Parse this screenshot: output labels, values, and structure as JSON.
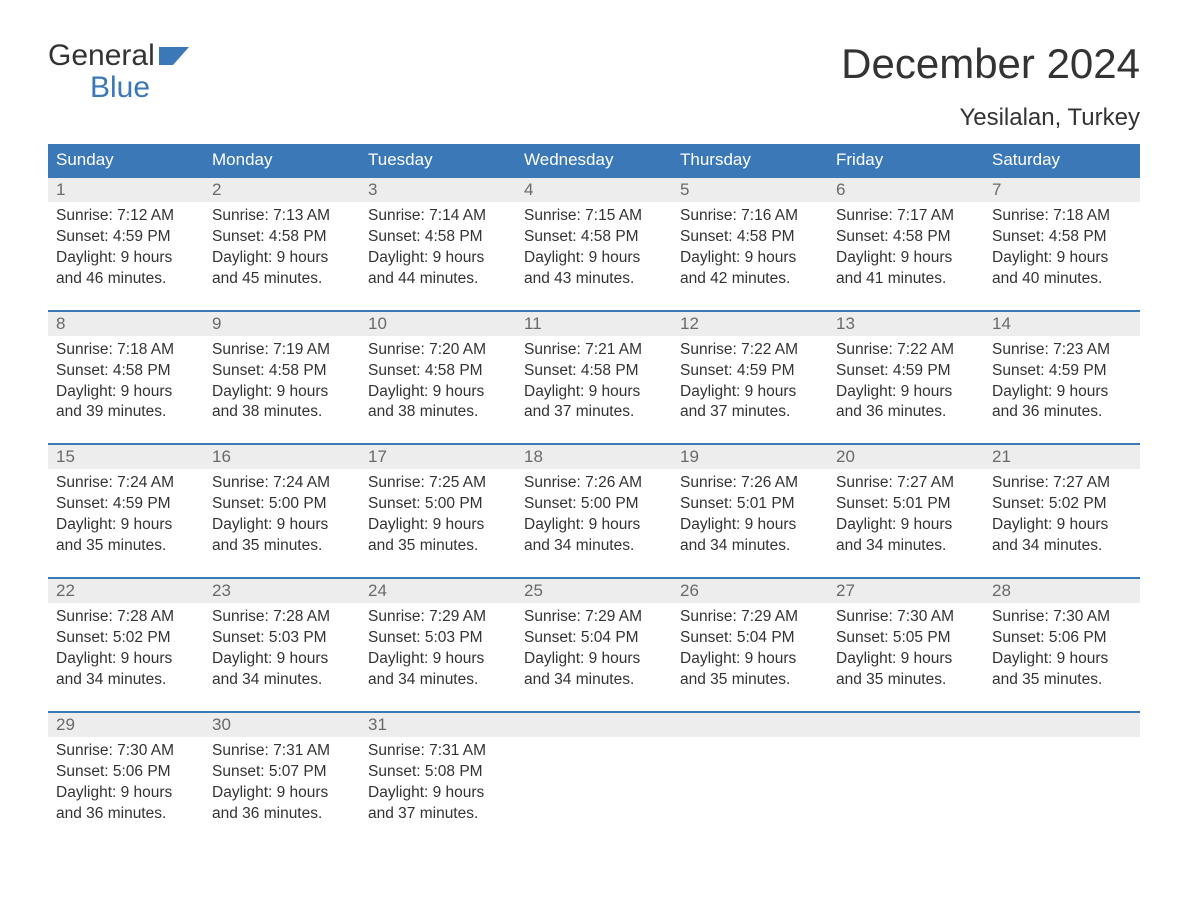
{
  "logo": {
    "word1": "General",
    "word2": "Blue"
  },
  "title": "December 2024",
  "subtitle": "Yesilalan, Turkey",
  "colors": {
    "header_bg": "#3b78b8",
    "header_text": "#ffffff",
    "daynum_bg": "#ededed",
    "daynum_text": "#6a6a6a",
    "body_text": "#333333",
    "week_border": "#3b78b8",
    "logo_blue": "#3b78b8"
  },
  "layout": {
    "columns": 7,
    "rows": 5,
    "cell_font_size": 15.5,
    "title_font_size": 42,
    "subtitle_font_size": 24,
    "weekday_font_size": 17
  },
  "weekdays": [
    "Sunday",
    "Monday",
    "Tuesday",
    "Wednesday",
    "Thursday",
    "Friday",
    "Saturday"
  ],
  "labels": {
    "sunrise": "Sunrise:",
    "sunset": "Sunset:",
    "daylight": "Daylight:"
  },
  "weeks": [
    [
      {
        "n": "1",
        "sunrise": "7:12 AM",
        "sunset": "4:59 PM",
        "dl1": "9 hours",
        "dl2": "and 46 minutes."
      },
      {
        "n": "2",
        "sunrise": "7:13 AM",
        "sunset": "4:58 PM",
        "dl1": "9 hours",
        "dl2": "and 45 minutes."
      },
      {
        "n": "3",
        "sunrise": "7:14 AM",
        "sunset": "4:58 PM",
        "dl1": "9 hours",
        "dl2": "and 44 minutes."
      },
      {
        "n": "4",
        "sunrise": "7:15 AM",
        "sunset": "4:58 PM",
        "dl1": "9 hours",
        "dl2": "and 43 minutes."
      },
      {
        "n": "5",
        "sunrise": "7:16 AM",
        "sunset": "4:58 PM",
        "dl1": "9 hours",
        "dl2": "and 42 minutes."
      },
      {
        "n": "6",
        "sunrise": "7:17 AM",
        "sunset": "4:58 PM",
        "dl1": "9 hours",
        "dl2": "and 41 minutes."
      },
      {
        "n": "7",
        "sunrise": "7:18 AM",
        "sunset": "4:58 PM",
        "dl1": "9 hours",
        "dl2": "and 40 minutes."
      }
    ],
    [
      {
        "n": "8",
        "sunrise": "7:18 AM",
        "sunset": "4:58 PM",
        "dl1": "9 hours",
        "dl2": "and 39 minutes."
      },
      {
        "n": "9",
        "sunrise": "7:19 AM",
        "sunset": "4:58 PM",
        "dl1": "9 hours",
        "dl2": "and 38 minutes."
      },
      {
        "n": "10",
        "sunrise": "7:20 AM",
        "sunset": "4:58 PM",
        "dl1": "9 hours",
        "dl2": "and 38 minutes."
      },
      {
        "n": "11",
        "sunrise": "7:21 AM",
        "sunset": "4:58 PM",
        "dl1": "9 hours",
        "dl2": "and 37 minutes."
      },
      {
        "n": "12",
        "sunrise": "7:22 AM",
        "sunset": "4:59 PM",
        "dl1": "9 hours",
        "dl2": "and 37 minutes."
      },
      {
        "n": "13",
        "sunrise": "7:22 AM",
        "sunset": "4:59 PM",
        "dl1": "9 hours",
        "dl2": "and 36 minutes."
      },
      {
        "n": "14",
        "sunrise": "7:23 AM",
        "sunset": "4:59 PM",
        "dl1": "9 hours",
        "dl2": "and 36 minutes."
      }
    ],
    [
      {
        "n": "15",
        "sunrise": "7:24 AM",
        "sunset": "4:59 PM",
        "dl1": "9 hours",
        "dl2": "and 35 minutes."
      },
      {
        "n": "16",
        "sunrise": "7:24 AM",
        "sunset": "5:00 PM",
        "dl1": "9 hours",
        "dl2": "and 35 minutes."
      },
      {
        "n": "17",
        "sunrise": "7:25 AM",
        "sunset": "5:00 PM",
        "dl1": "9 hours",
        "dl2": "and 35 minutes."
      },
      {
        "n": "18",
        "sunrise": "7:26 AM",
        "sunset": "5:00 PM",
        "dl1": "9 hours",
        "dl2": "and 34 minutes."
      },
      {
        "n": "19",
        "sunrise": "7:26 AM",
        "sunset": "5:01 PM",
        "dl1": "9 hours",
        "dl2": "and 34 minutes."
      },
      {
        "n": "20",
        "sunrise": "7:27 AM",
        "sunset": "5:01 PM",
        "dl1": "9 hours",
        "dl2": "and 34 minutes."
      },
      {
        "n": "21",
        "sunrise": "7:27 AM",
        "sunset": "5:02 PM",
        "dl1": "9 hours",
        "dl2": "and 34 minutes."
      }
    ],
    [
      {
        "n": "22",
        "sunrise": "7:28 AM",
        "sunset": "5:02 PM",
        "dl1": "9 hours",
        "dl2": "and 34 minutes."
      },
      {
        "n": "23",
        "sunrise": "7:28 AM",
        "sunset": "5:03 PM",
        "dl1": "9 hours",
        "dl2": "and 34 minutes."
      },
      {
        "n": "24",
        "sunrise": "7:29 AM",
        "sunset": "5:03 PM",
        "dl1": "9 hours",
        "dl2": "and 34 minutes."
      },
      {
        "n": "25",
        "sunrise": "7:29 AM",
        "sunset": "5:04 PM",
        "dl1": "9 hours",
        "dl2": "and 34 minutes."
      },
      {
        "n": "26",
        "sunrise": "7:29 AM",
        "sunset": "5:04 PM",
        "dl1": "9 hours",
        "dl2": "and 35 minutes."
      },
      {
        "n": "27",
        "sunrise": "7:30 AM",
        "sunset": "5:05 PM",
        "dl1": "9 hours",
        "dl2": "and 35 minutes."
      },
      {
        "n": "28",
        "sunrise": "7:30 AM",
        "sunset": "5:06 PM",
        "dl1": "9 hours",
        "dl2": "and 35 minutes."
      }
    ],
    [
      {
        "n": "29",
        "sunrise": "7:30 AM",
        "sunset": "5:06 PM",
        "dl1": "9 hours",
        "dl2": "and 36 minutes."
      },
      {
        "n": "30",
        "sunrise": "7:31 AM",
        "sunset": "5:07 PM",
        "dl1": "9 hours",
        "dl2": "and 36 minutes."
      },
      {
        "n": "31",
        "sunrise": "7:31 AM",
        "sunset": "5:08 PM",
        "dl1": "9 hours",
        "dl2": "and 37 minutes."
      },
      null,
      null,
      null,
      null
    ]
  ]
}
